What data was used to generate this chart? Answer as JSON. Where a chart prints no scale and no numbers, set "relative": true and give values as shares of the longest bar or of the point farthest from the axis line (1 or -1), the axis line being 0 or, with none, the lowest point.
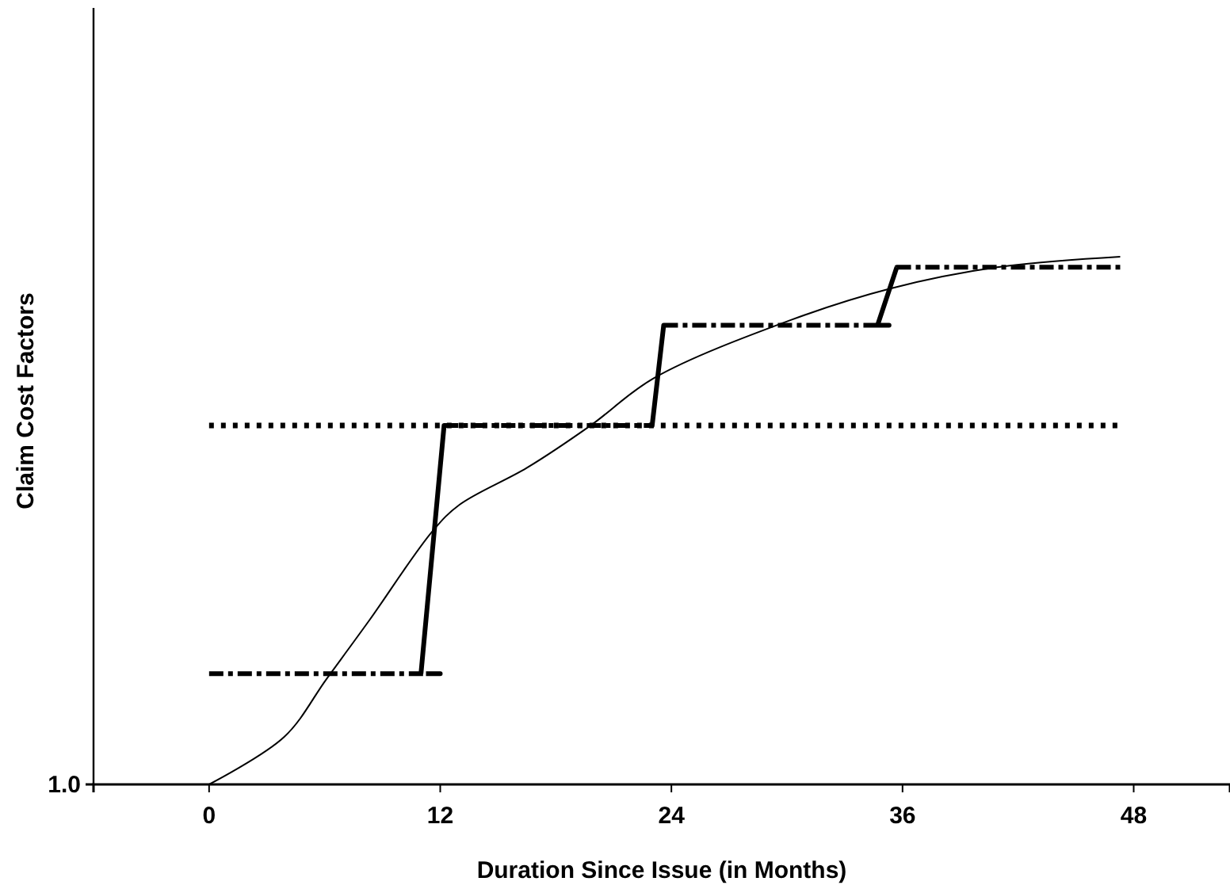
{
  "chart_data": {
    "type": "line",
    "relative": true,
    "xlabel": "Duration Since Issue (in Months)",
    "ylabel": "Claim Cost Factors",
    "annotations": [
      "1.0"
    ],
    "xlim": [
      -6,
      53
    ],
    "xticks": [
      0,
      12,
      24,
      36,
      48
    ],
    "tick_labels": "x",
    "grid": false,
    "marker": "none",
    "series": [
      {
        "color": "#000000",
        "line_style": "solid",
        "x": [
          0,
          3.9,
          6.1,
          8.3,
          11.6,
          13,
          16.5,
          19.8,
          23.1,
          30.2,
          35.4,
          40.9,
          47.3
        ],
        "values": [
          0,
          0.09,
          0.2,
          0.31,
          0.48,
          0.53,
          0.6,
          0.68,
          0.77,
          0.88,
          0.94,
          0.98,
          1
        ]
      },
      {
        "color": "#000000",
        "line_style": "dotted",
        "x": [
          0,
          47.3
        ],
        "values": [
          0.68,
          0.68
        ]
      },
      {
        "color": "#000000",
        "line_style": "dashed",
        "x": [
          0,
          12,
          11,
          12.2,
          23,
          23.6,
          35.3,
          34.7,
          35.7,
          47.3
        ],
        "values": [
          0.21,
          0.21,
          0.21,
          0.68,
          0.68,
          0.87,
          0.87,
          0.87,
          0.98,
          0.98
        ]
      }
    ]
  }
}
